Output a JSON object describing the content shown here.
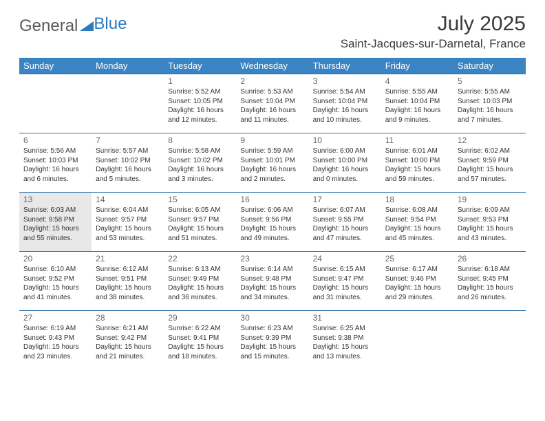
{
  "logo": {
    "word1": "General",
    "word2": "Blue"
  },
  "title": "July 2025",
  "location": "Saint-Jacques-sur-Darnetal, France",
  "columns": [
    "Sunday",
    "Monday",
    "Tuesday",
    "Wednesday",
    "Thursday",
    "Friday",
    "Saturday"
  ],
  "colors": {
    "header_bg": "#3b84c4",
    "header_text": "#ffffff",
    "row_border": "#2f6fa6",
    "text": "#333333",
    "daynum": "#666666",
    "today_bg": "#e8e8e8",
    "logo_gray": "#5a5a5a",
    "logo_blue": "#2b7bbf"
  },
  "today_index": 12,
  "weeks": [
    [
      null,
      null,
      {
        "n": "1",
        "sr": "5:52 AM",
        "ss": "10:05 PM",
        "dl": "16 hours and 12 minutes."
      },
      {
        "n": "2",
        "sr": "5:53 AM",
        "ss": "10:04 PM",
        "dl": "16 hours and 11 minutes."
      },
      {
        "n": "3",
        "sr": "5:54 AM",
        "ss": "10:04 PM",
        "dl": "16 hours and 10 minutes."
      },
      {
        "n": "4",
        "sr": "5:55 AM",
        "ss": "10:04 PM",
        "dl": "16 hours and 9 minutes."
      },
      {
        "n": "5",
        "sr": "5:55 AM",
        "ss": "10:03 PM",
        "dl": "16 hours and 7 minutes."
      }
    ],
    [
      {
        "n": "6",
        "sr": "5:56 AM",
        "ss": "10:03 PM",
        "dl": "16 hours and 6 minutes."
      },
      {
        "n": "7",
        "sr": "5:57 AM",
        "ss": "10:02 PM",
        "dl": "16 hours and 5 minutes."
      },
      {
        "n": "8",
        "sr": "5:58 AM",
        "ss": "10:02 PM",
        "dl": "16 hours and 3 minutes."
      },
      {
        "n": "9",
        "sr": "5:59 AM",
        "ss": "10:01 PM",
        "dl": "16 hours and 2 minutes."
      },
      {
        "n": "10",
        "sr": "6:00 AM",
        "ss": "10:00 PM",
        "dl": "16 hours and 0 minutes."
      },
      {
        "n": "11",
        "sr": "6:01 AM",
        "ss": "10:00 PM",
        "dl": "15 hours and 59 minutes."
      },
      {
        "n": "12",
        "sr": "6:02 AM",
        "ss": "9:59 PM",
        "dl": "15 hours and 57 minutes."
      }
    ],
    [
      {
        "n": "13",
        "sr": "6:03 AM",
        "ss": "9:58 PM",
        "dl": "15 hours and 55 minutes."
      },
      {
        "n": "14",
        "sr": "6:04 AM",
        "ss": "9:57 PM",
        "dl": "15 hours and 53 minutes."
      },
      {
        "n": "15",
        "sr": "6:05 AM",
        "ss": "9:57 PM",
        "dl": "15 hours and 51 minutes."
      },
      {
        "n": "16",
        "sr": "6:06 AM",
        "ss": "9:56 PM",
        "dl": "15 hours and 49 minutes."
      },
      {
        "n": "17",
        "sr": "6:07 AM",
        "ss": "9:55 PM",
        "dl": "15 hours and 47 minutes."
      },
      {
        "n": "18",
        "sr": "6:08 AM",
        "ss": "9:54 PM",
        "dl": "15 hours and 45 minutes."
      },
      {
        "n": "19",
        "sr": "6:09 AM",
        "ss": "9:53 PM",
        "dl": "15 hours and 43 minutes."
      }
    ],
    [
      {
        "n": "20",
        "sr": "6:10 AM",
        "ss": "9:52 PM",
        "dl": "15 hours and 41 minutes."
      },
      {
        "n": "21",
        "sr": "6:12 AM",
        "ss": "9:51 PM",
        "dl": "15 hours and 38 minutes."
      },
      {
        "n": "22",
        "sr": "6:13 AM",
        "ss": "9:49 PM",
        "dl": "15 hours and 36 minutes."
      },
      {
        "n": "23",
        "sr": "6:14 AM",
        "ss": "9:48 PM",
        "dl": "15 hours and 34 minutes."
      },
      {
        "n": "24",
        "sr": "6:15 AM",
        "ss": "9:47 PM",
        "dl": "15 hours and 31 minutes."
      },
      {
        "n": "25",
        "sr": "6:17 AM",
        "ss": "9:46 PM",
        "dl": "15 hours and 29 minutes."
      },
      {
        "n": "26",
        "sr": "6:18 AM",
        "ss": "9:45 PM",
        "dl": "15 hours and 26 minutes."
      }
    ],
    [
      {
        "n": "27",
        "sr": "6:19 AM",
        "ss": "9:43 PM",
        "dl": "15 hours and 23 minutes."
      },
      {
        "n": "28",
        "sr": "6:21 AM",
        "ss": "9:42 PM",
        "dl": "15 hours and 21 minutes."
      },
      {
        "n": "29",
        "sr": "6:22 AM",
        "ss": "9:41 PM",
        "dl": "15 hours and 18 minutes."
      },
      {
        "n": "30",
        "sr": "6:23 AM",
        "ss": "9:39 PM",
        "dl": "15 hours and 15 minutes."
      },
      {
        "n": "31",
        "sr": "6:25 AM",
        "ss": "9:38 PM",
        "dl": "15 hours and 13 minutes."
      },
      null,
      null
    ]
  ],
  "labels": {
    "sunrise": "Sunrise:",
    "sunset": "Sunset:",
    "daylight": "Daylight:"
  }
}
